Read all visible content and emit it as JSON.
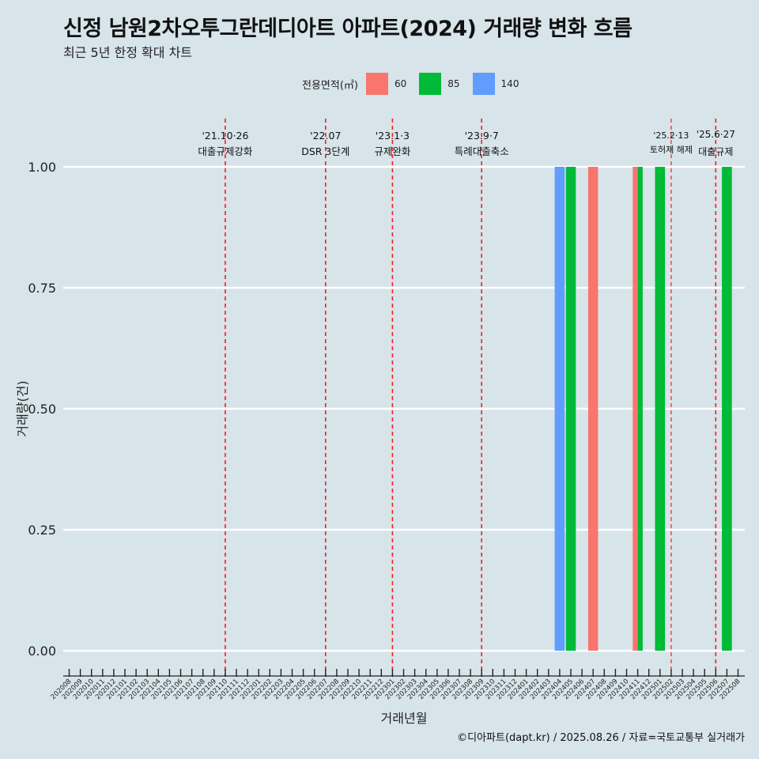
{
  "title": "신정 남원2차오투그란데디아트 아파트(2024) 거래량 변화 흐름",
  "subtitle": "최근 5년 한정 확대 차트",
  "caption": "©디아파트(dapt.kr) / 2025.08.26 / 자료=국토교통부 실거래가",
  "legend": {
    "title": "전용면적(㎡)",
    "items": [
      {
        "label": "60",
        "color": "#f8766d"
      },
      {
        "label": "85",
        "color": "#00ba38"
      },
      {
        "label": "140",
        "color": "#619cff"
      }
    ]
  },
  "chart_data": {
    "type": "bar",
    "xlabel": "거래년월",
    "ylabel": "거래량(건)",
    "ylim": [
      0,
      1
    ],
    "yticks": [
      "0.00",
      "0.25",
      "0.50",
      "0.75",
      "1.00"
    ],
    "categories": [
      "202008",
      "202009",
      "202010",
      "202011",
      "202012",
      "202101",
      "202102",
      "202103",
      "202104",
      "202105",
      "202106",
      "202107",
      "202108",
      "202109",
      "202110",
      "202111",
      "202112",
      "202201",
      "202202",
      "202203",
      "202204",
      "202205",
      "202206",
      "202207",
      "202208",
      "202209",
      "202210",
      "202211",
      "202212",
      "202301",
      "202302",
      "202303",
      "202304",
      "202305",
      "202306",
      "202307",
      "202308",
      "202309",
      "202310",
      "202311",
      "202312",
      "202401",
      "202402",
      "202403",
      "202404",
      "202405",
      "202406",
      "202407",
      "202408",
      "202409",
      "202410",
      "202411",
      "202412",
      "202501",
      "202502",
      "202503",
      "202504",
      "202505",
      "202506",
      "202507",
      "202508"
    ],
    "series": [
      {
        "name": "60",
        "color": "#f8766d",
        "values": [
          {
            "x": "202407",
            "y": 1
          },
          {
            "x": "202411",
            "y": 1
          }
        ]
      },
      {
        "name": "85",
        "color": "#00ba38",
        "values": [
          {
            "x": "202405",
            "y": 1
          },
          {
            "x": "202411",
            "y": 1
          },
          {
            "x": "202501",
            "y": 1
          },
          {
            "x": "202507",
            "y": 1
          }
        ]
      },
      {
        "name": "140",
        "color": "#619cff",
        "values": [
          {
            "x": "202404",
            "y": 1
          }
        ]
      }
    ],
    "annotations": [
      {
        "x": "202110",
        "date": "'21.10·26",
        "text": "대출규제강화"
      },
      {
        "x": "202207",
        "date": "'22.07",
        "text": "DSR 3단계"
      },
      {
        "x": "202301",
        "date": "'23.1·3",
        "text": "규제완화"
      },
      {
        "x": "202309",
        "date": "'23.9·7",
        "text": "특례대출축소"
      },
      {
        "x": "202502",
        "date": "'25.2·13",
        "text": "토허제 해제"
      },
      {
        "x": "202506",
        "date": "'25.6·27",
        "text": "대출규제"
      }
    ]
  }
}
